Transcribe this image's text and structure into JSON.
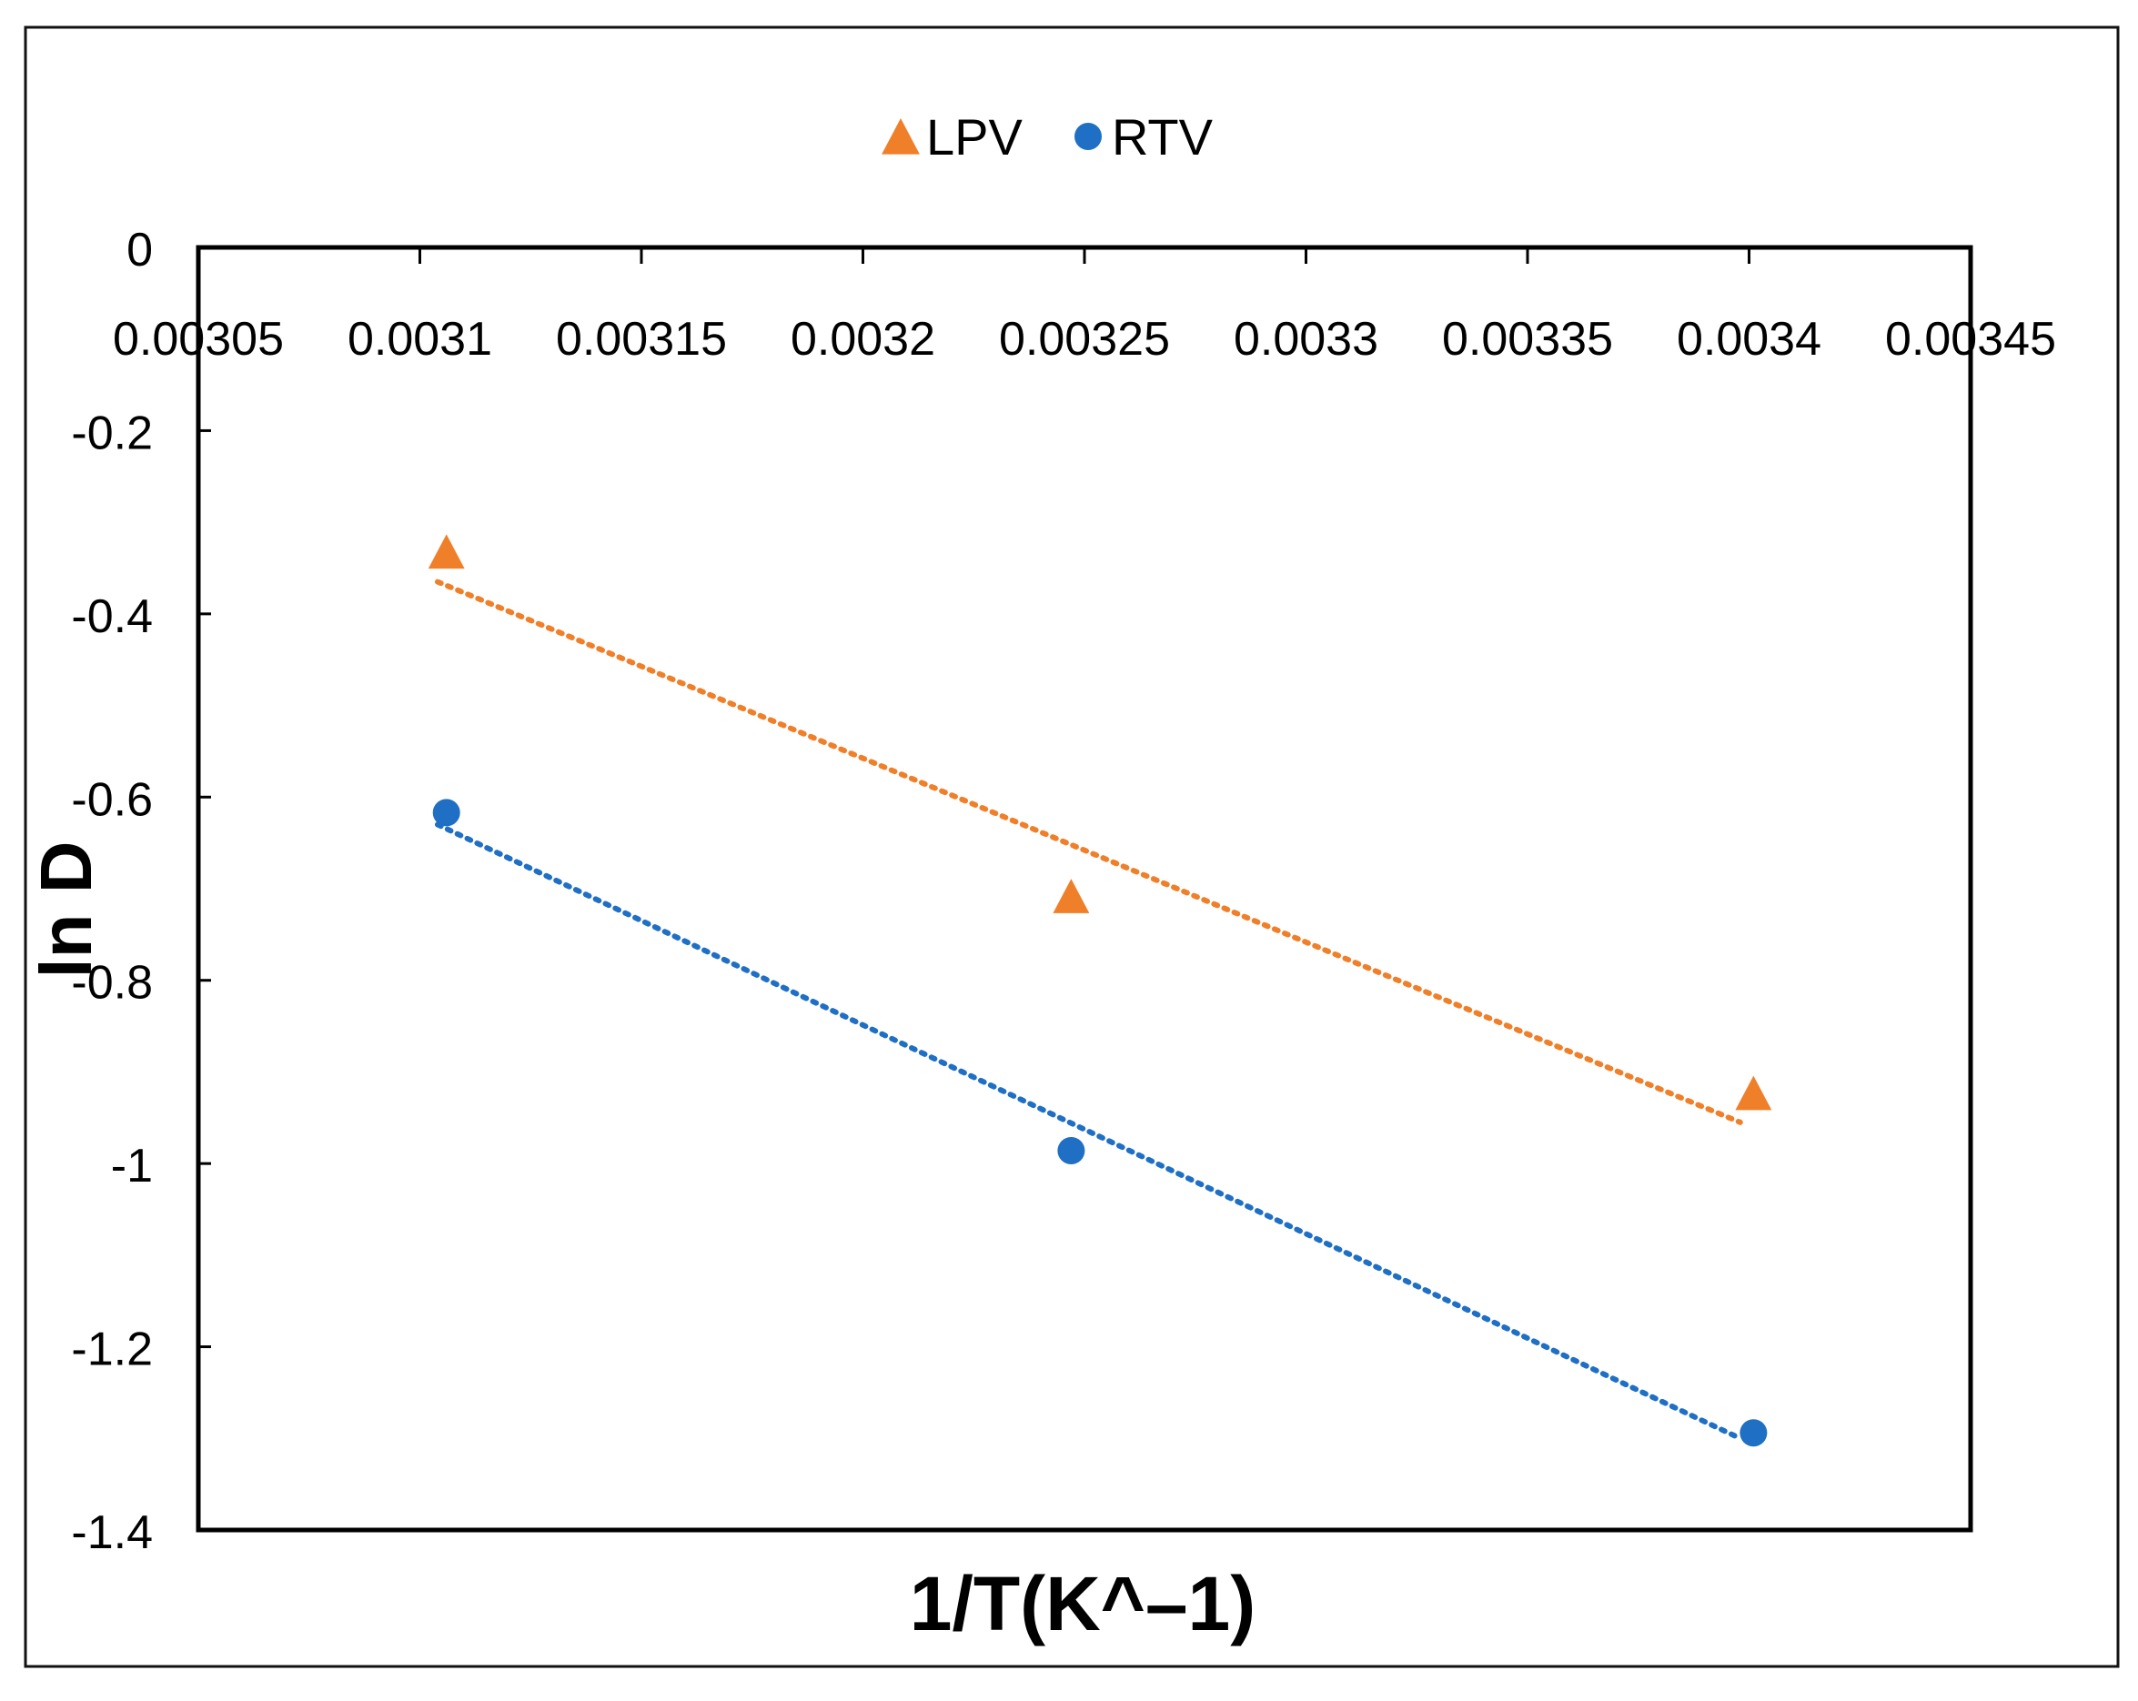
{
  "chart_data": {
    "type": "scatter",
    "title": "",
    "xlabel": "1/T(K^–1)",
    "ylabel": "ln D",
    "xlim": [
      0.00305,
      0.00345
    ],
    "ylim": [
      -1.4,
      0
    ],
    "x_ticks": [
      "0.00305",
      "0.0031",
      "0.00315",
      "0.0032",
      "0.00325",
      "0.0033",
      "0.00335",
      "0.0034",
      "0.00345"
    ],
    "y_ticks": [
      "0",
      "-0.2",
      "-0.4",
      "-0.6",
      "-0.8",
      "-1",
      "-1.2",
      "-1.4"
    ],
    "x_axis_position": "top",
    "grid": false,
    "legend_position": "top-center",
    "series": [
      {
        "name": "LPV",
        "marker": "triangle",
        "color": "#F07F2A",
        "x": [
          0.003106,
          0.003247,
          0.003401
        ],
        "y": [
          -0.334,
          -0.71,
          -0.925
        ],
        "trendline": {
          "type": "linear",
          "style": "dotted",
          "x": [
            0.003104,
            0.003398
          ],
          "y": [
            -0.365,
            -0.955
          ]
        }
      },
      {
        "name": "RTV",
        "marker": "circle",
        "color": "#1F6FC5",
        "x": [
          0.003106,
          0.003247,
          0.003401
        ],
        "y": [
          -0.617,
          -0.986,
          -1.294
        ],
        "trendline": {
          "type": "linear",
          "style": "dotted",
          "x": [
            0.003104,
            0.003398
          ],
          "y": [
            -0.63,
            -1.3
          ]
        }
      }
    ]
  }
}
